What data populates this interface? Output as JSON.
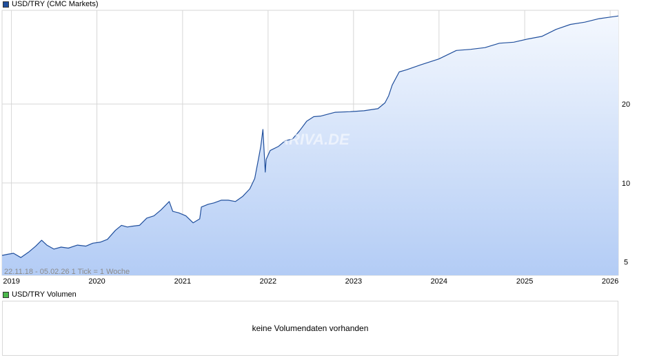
{
  "chart_data": {
    "type": "area",
    "title": "USD/TRY (CMC Markets)",
    "series": [
      {
        "name": "USD/TRY (CMC Markets)",
        "color": "#1f4e9c",
        "x": [
          "2018-11-22",
          "2018-12-15",
          "2019-01-10",
          "2019-02-10",
          "2019-03-15",
          "2019-04-15",
          "2019-05-10",
          "2019-06-01",
          "2019-07-01",
          "2019-08-01",
          "2019-09-01",
          "2019-10-10",
          "2019-11-15",
          "2019-12-15",
          "2020-01-15",
          "2020-02-15",
          "2020-03-20",
          "2020-04-15",
          "2020-05-10",
          "2020-06-01",
          "2020-07-01",
          "2020-08-01",
          "2020-09-01",
          "2020-10-01",
          "2020-11-05",
          "2020-11-20",
          "2020-12-15",
          "2021-01-15",
          "2021-02-15",
          "2021-03-15",
          "2021-03-22",
          "2021-04-20",
          "2021-05-15",
          "2021-06-15",
          "2021-07-15",
          "2021-08-15",
          "2021-09-15",
          "2021-10-15",
          "2021-11-05",
          "2021-11-22",
          "2021-12-01",
          "2021-12-10",
          "2021-12-20",
          "2021-12-24",
          "2022-01-10",
          "2022-02-15",
          "2022-03-15",
          "2022-04-15",
          "2022-05-15",
          "2022-06-15",
          "2022-07-15",
          "2022-08-15",
          "2022-10-15",
          "2022-12-15",
          "2023-02-15",
          "2023-04-15",
          "2023-05-15",
          "2023-05-31",
          "2023-06-15",
          "2023-07-15",
          "2023-08-15",
          "2023-10-15",
          "2024-01-01",
          "2024-03-15",
          "2024-05-15",
          "2024-07-15",
          "2024-09-15",
          "2024-11-15",
          "2025-01-15",
          "2025-03-15",
          "2025-05-15",
          "2025-07-15",
          "2025-09-15",
          "2025-11-15",
          "2026-02-05"
        ],
        "values": [
          5.3,
          5.35,
          5.4,
          5.2,
          5.45,
          5.75,
          6.05,
          5.8,
          5.6,
          5.7,
          5.65,
          5.8,
          5.75,
          5.9,
          5.95,
          6.1,
          6.6,
          6.9,
          6.8,
          6.85,
          6.9,
          7.35,
          7.5,
          7.9,
          8.5,
          7.8,
          7.7,
          7.5,
          7.05,
          7.3,
          8.1,
          8.3,
          8.4,
          8.6,
          8.6,
          8.5,
          8.9,
          9.5,
          10.4,
          12.5,
          13.8,
          16.0,
          11.0,
          12.3,
          13.3,
          13.8,
          14.5,
          14.7,
          15.8,
          17.2,
          17.9,
          18.0,
          18.6,
          18.7,
          18.85,
          19.2,
          20.2,
          21.5,
          23.6,
          26.5,
          27.0,
          28.2,
          29.7,
          32.0,
          32.3,
          32.8,
          34.1,
          34.4,
          35.4,
          36.2,
          38.5,
          40.2,
          41.0,
          42.3,
          43.3
        ]
      }
    ],
    "x_tick_labels": [
      "2019",
      "2020",
      "2021",
      "2022",
      "2023",
      "2024",
      "2025",
      "2026"
    ],
    "y_tick_labels": [
      "5",
      "10",
      "20"
    ],
    "y_scale": "log",
    "date_range_label": "22.11.18 - 05.02.26",
    "tick_info": "1 Tick = 1 Woche",
    "grid": true,
    "legend_position": "top-left"
  },
  "watermark": "ARIVA.DE",
  "volume_panel": {
    "legend_label": "USD/TRY Volumen",
    "legend_color": "#4cb84c",
    "empty_message": "keine Volumendaten vorhanden"
  },
  "colors": {
    "line": "#1f4e9c",
    "area_top": "#f4f8fe",
    "area_bottom": "#b3ccf5",
    "grid": "#d6d6d6"
  }
}
